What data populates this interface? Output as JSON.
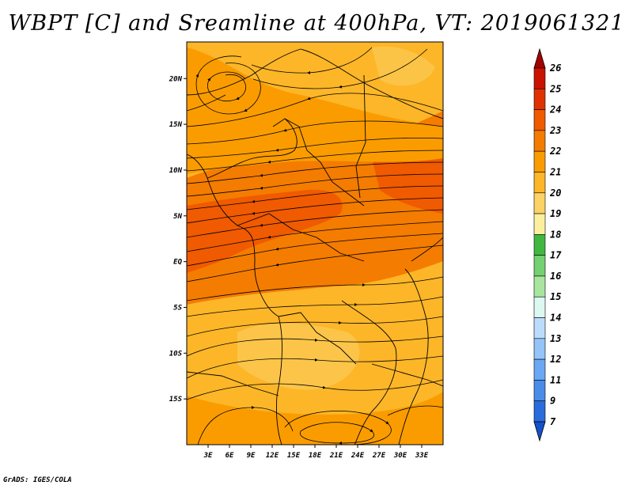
{
  "title": "WBPT [C] and Sreamline at 400hPa, VT: 2019061321",
  "credit": "GrADS: IGES/COLA",
  "x_ticks": [
    "3E",
    "6E",
    "9E",
    "12E",
    "15E",
    "18E",
    "21E",
    "24E",
    "27E",
    "30E",
    "33E"
  ],
  "y_ticks": [
    "20N",
    "15N",
    "10N",
    "5N",
    "EQ",
    "5S",
    "10S",
    "15S"
  ],
  "colorbar": {
    "labels": [
      "26",
      "25",
      "24",
      "23",
      "22",
      "21",
      "20",
      "19",
      "18",
      "17",
      "16",
      "15",
      "14",
      "13",
      "12",
      "11",
      "9",
      "7"
    ],
    "colors": [
      "#a50000",
      "#c81400",
      "#e03200",
      "#f05a00",
      "#f47c00",
      "#fa9c00",
      "#fcb628",
      "#fcd264",
      "#fcf0a0",
      "#40b840",
      "#74d070",
      "#a8e6a0",
      "#dcf8f0",
      "#bcdcfc",
      "#94c4f8",
      "#6aa8f4",
      "#4a8ce8",
      "#2a6cdc",
      "#1450c8"
    ]
  },
  "map": {
    "lon_range": [
      0,
      36
    ],
    "lat_range": [
      -20,
      24
    ],
    "field_colors": {
      "background": "#fcb628",
      "warm_band": "#f47c00",
      "hot_core": "#f05a00",
      "cool_patch": "#fcd264"
    }
  }
}
